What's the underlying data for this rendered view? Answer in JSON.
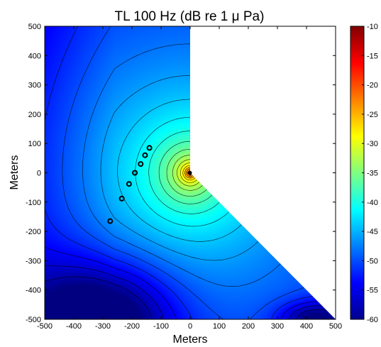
{
  "chart_data": {
    "type": "heatmap",
    "title": "TL 100 Hz (dB re 1 μ Pa)",
    "xlabel": "Meters",
    "ylabel": "Meters",
    "xlim": [
      -500,
      500
    ],
    "ylim": [
      -500,
      500
    ],
    "x_ticks": [
      "-500",
      "-400",
      "-300",
      "-200",
      "-100",
      "0",
      "100",
      "200",
      "300",
      "400",
      "500"
    ],
    "y_ticks": [
      "500",
      "400",
      "300",
      "200",
      "100",
      "0",
      "-100",
      "-200",
      "-300",
      "-400",
      "-500"
    ],
    "colorbar": {
      "range": [
        -60,
        -10
      ],
      "ticks": [
        "-10",
        "-15",
        "-20",
        "-25",
        "-30",
        "-35",
        "-40",
        "-45",
        "-50",
        "-55",
        "-60"
      ],
      "colormap": "jet"
    },
    "source": {
      "x": 0,
      "y": 0,
      "level_db": -10
    },
    "excluded_region": "wedge between the positive y-axis and the line y = -x for x > 0 (not computed, left white)",
    "markers": [
      {
        "x": -140,
        "y": 85
      },
      {
        "x": -155,
        "y": 60
      },
      {
        "x": -170,
        "y": 30
      },
      {
        "x": -190,
        "y": 0
      },
      {
        "x": -210,
        "y": -38
      },
      {
        "x": -235,
        "y": -88
      },
      {
        "x": -275,
        "y": -165
      }
    ],
    "grid": false,
    "legend": "colorbar-right"
  }
}
